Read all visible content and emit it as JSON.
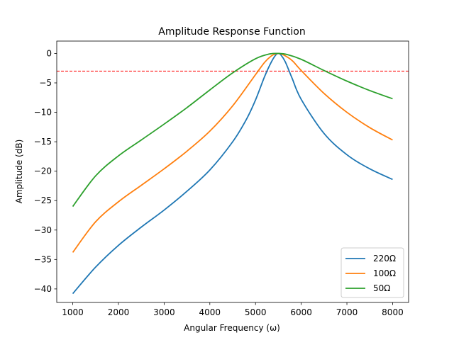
{
  "chart_data": {
    "type": "line",
    "title": "Amplitude Response Function",
    "xlabel": "Angular Frequency (ω)",
    "ylabel": "Amplitude (dB)",
    "xlim": [
      650,
      8350
    ],
    "ylim": [
      -42.3,
      2.1
    ],
    "xticks": [
      1000,
      2000,
      3000,
      4000,
      5000,
      6000,
      7000,
      8000
    ],
    "yticks": [
      0,
      -5,
      -10,
      -15,
      -20,
      -25,
      -30,
      -35,
      -40
    ],
    "grid": false,
    "legend_position": "lower-right",
    "reference_line": {
      "y": -3,
      "color": "#ff0000",
      "style": "dashed"
    },
    "series": [
      {
        "name": "220Ω",
        "color": "#1f77b4",
        "x": [
          1000,
          1500,
          2000,
          2500,
          3000,
          3500,
          4000,
          4500,
          4800,
          5000,
          5200,
          5350,
          5450,
          5500,
          5550,
          5650,
          5800,
          6000,
          6500,
          7000,
          7500,
          8000
        ],
        "y": [
          -40.8,
          -36.3,
          -32.6,
          -29.5,
          -26.6,
          -23.4,
          -19.8,
          -15.0,
          -11.2,
          -7.9,
          -3.9,
          -1.4,
          -0.2,
          0.0,
          -0.2,
          -1.4,
          -4.2,
          -7.8,
          -13.6,
          -17.2,
          -19.6,
          -21.4
        ]
      },
      {
        "name": "100Ω",
        "color": "#ff7f0e",
        "x": [
          1000,
          1500,
          2000,
          2500,
          3000,
          3500,
          4000,
          4500,
          5000,
          5200,
          5350,
          5450,
          5500,
          5600,
          5800,
          6000,
          6500,
          7000,
          7500,
          8000
        ],
        "y": [
          -33.8,
          -28.6,
          -25.2,
          -22.4,
          -19.6,
          -16.6,
          -13.2,
          -8.9,
          -3.6,
          -1.5,
          -0.4,
          -0.05,
          0.0,
          -0.2,
          -1.2,
          -2.9,
          -6.8,
          -10.0,
          -12.6,
          -14.7
        ]
      },
      {
        "name": "50Ω",
        "color": "#2ca02c",
        "x": [
          1000,
          1500,
          2000,
          2500,
          3000,
          3500,
          4000,
          4500,
          5000,
          5300,
          5500,
          5700,
          6000,
          6500,
          7000,
          7500,
          8000
        ],
        "y": [
          -26.0,
          -20.8,
          -17.4,
          -14.7,
          -12.0,
          -9.2,
          -6.2,
          -3.3,
          -0.9,
          -0.1,
          0.0,
          -0.2,
          -1.0,
          -2.9,
          -4.7,
          -6.3,
          -7.7
        ]
      }
    ]
  }
}
